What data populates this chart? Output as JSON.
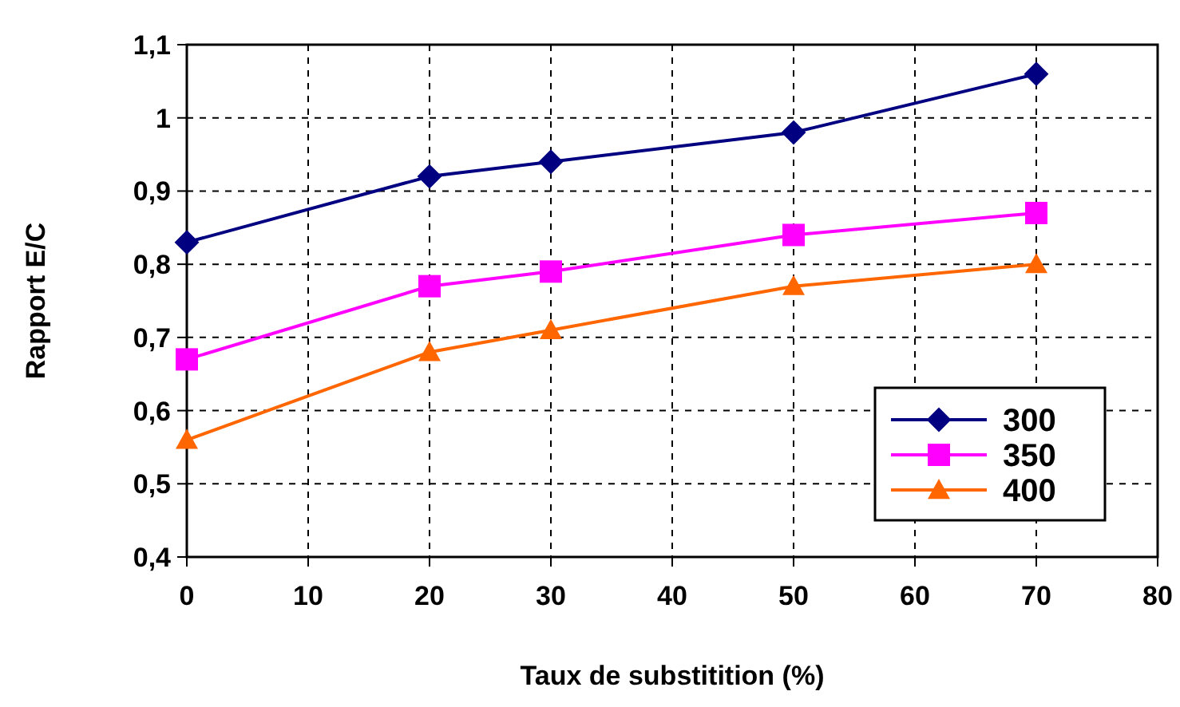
{
  "chart_data": {
    "type": "line",
    "xlabel": "Taux de substitition (%)",
    "ylabel": "Rapport E/C",
    "x": [
      0,
      20,
      30,
      50,
      70
    ],
    "series": [
      {
        "name": "300",
        "color": "#000080",
        "marker": "diamond",
        "values": [
          0.83,
          0.92,
          0.94,
          0.98,
          1.06
        ]
      },
      {
        "name": "350",
        "color": "#ff00ff",
        "marker": "square",
        "values": [
          0.67,
          0.77,
          0.79,
          0.84,
          0.87
        ]
      },
      {
        "name": "400",
        "color": "#ff6600",
        "marker": "triangle",
        "values": [
          0.56,
          0.68,
          0.71,
          0.77,
          0.8
        ]
      }
    ],
    "xlim": [
      0,
      80
    ],
    "xticks": [
      0,
      10,
      20,
      30,
      40,
      50,
      60,
      70,
      80
    ],
    "ylim": [
      0.4,
      1.1
    ],
    "yticks": [
      {
        "value": 0.4,
        "label": "0,4"
      },
      {
        "value": 0.5,
        "label": "0,5"
      },
      {
        "value": 0.6,
        "label": "0,6"
      },
      {
        "value": 0.7,
        "label": "0,7"
      },
      {
        "value": 0.8,
        "label": "0,8"
      },
      {
        "value": 0.9,
        "label": "0,9"
      },
      1,
      {
        "value": 1.1,
        "label": "1,1"
      }
    ],
    "grid": true,
    "legend": "bottom right",
    "line_style": "solid"
  }
}
